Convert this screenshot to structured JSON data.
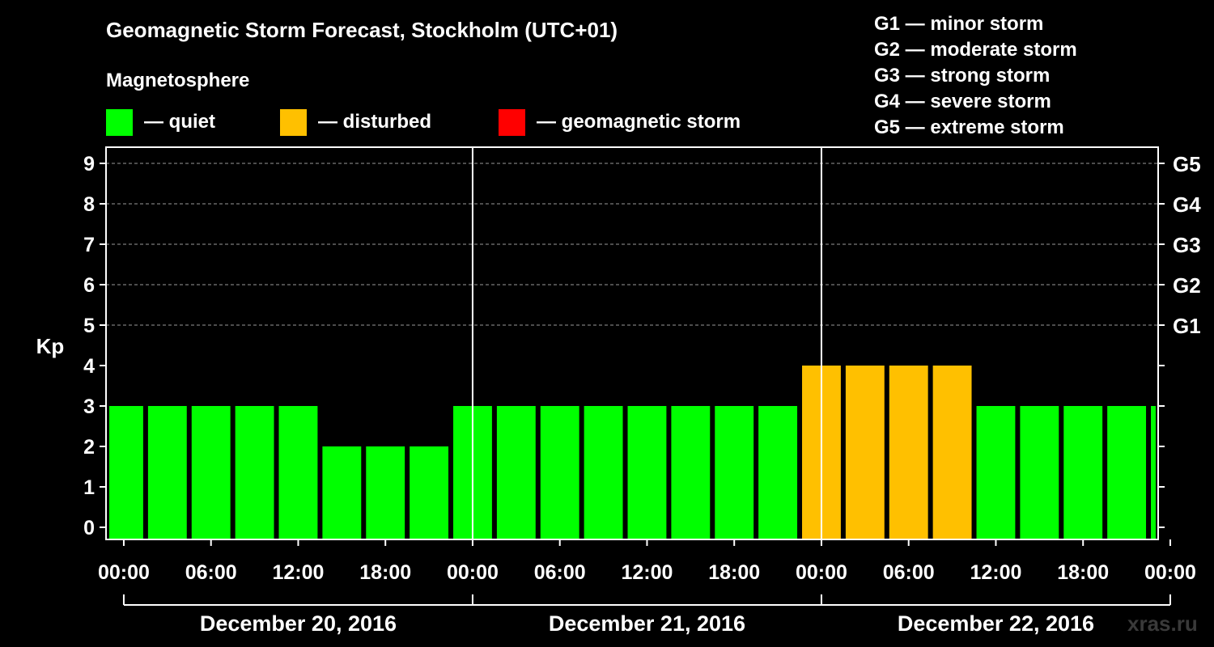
{
  "title": "Geomagnetic Storm Forecast, Stockholm (UTC+01)",
  "legend": {
    "heading": "Magnetosphere",
    "items": [
      {
        "label": "— quiet",
        "color": "#00ff00"
      },
      {
        "label": "— disturbed",
        "color": "#ffc000"
      },
      {
        "label": "— geomagnetic storm",
        "color": "#ff0000"
      }
    ]
  },
  "storm_levels": [
    "G1 — minor storm",
    "G2 — moderate storm",
    "G3 — strong storm",
    "G4 — severe storm",
    "G5 — extreme storm"
  ],
  "watermark": "xras.ru",
  "chart_data": {
    "type": "bar",
    "ylabel": "Kp",
    "ylim": [
      0,
      9
    ],
    "yticks": [
      "0",
      "1",
      "2",
      "3",
      "4",
      "5",
      "6",
      "7",
      "8",
      "9"
    ],
    "right_axis": [
      {
        "kp": 5,
        "label": "G1"
      },
      {
        "kp": 6,
        "label": "G2"
      },
      {
        "kp": 7,
        "label": "G3"
      },
      {
        "kp": 8,
        "label": "G4"
      },
      {
        "kp": 9,
        "label": "G5"
      }
    ],
    "xticks": [
      "00:00",
      "06:00",
      "12:00",
      "18:00",
      "00:00",
      "06:00",
      "12:00",
      "18:00",
      "00:00",
      "06:00",
      "12:00",
      "18:00",
      "00:00"
    ],
    "days": [
      "December 20, 2016",
      "December 21, 2016",
      "December 22, 2016"
    ],
    "interval_hours": 3,
    "x_start_hours": -1,
    "x_end_hours": 71,
    "kp_values": [
      3,
      3,
      3,
      3,
      3,
      2,
      2,
      2,
      3,
      3,
      3,
      3,
      3,
      3,
      3,
      3,
      4,
      4,
      4,
      4,
      3,
      3,
      3,
      3,
      3
    ],
    "colors": {
      "quiet": "#00ff00",
      "disturbed": "#ffc000",
      "storm": "#ff0000"
    }
  }
}
